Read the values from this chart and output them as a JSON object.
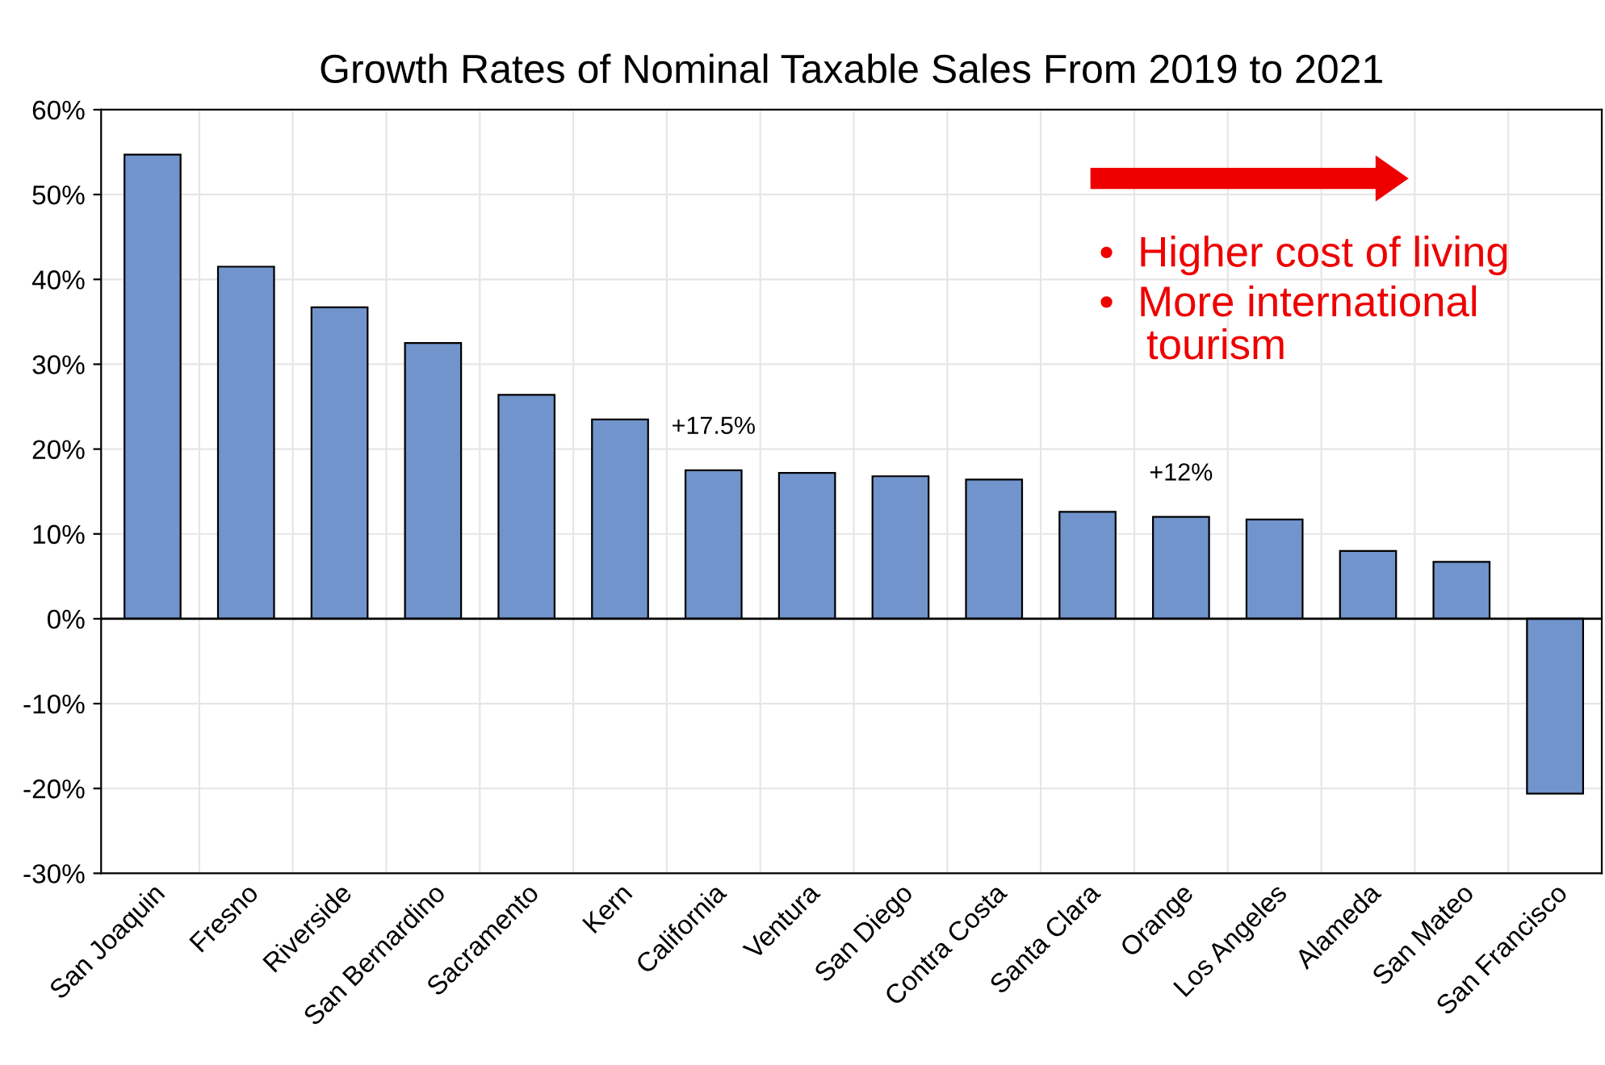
{
  "chart_data": {
    "type": "bar",
    "title": "Growth Rates of Nominal Taxable Sales From 2019 to 2021",
    "categories": [
      "San Joaquin",
      "Fresno",
      "Riverside",
      "San Bernardino",
      "Sacramento",
      "Kern",
      "California",
      "Ventura",
      "San Diego",
      "Contra Costa",
      "Santa Clara",
      "Orange",
      "Los Angeles",
      "Alameda",
      "San Mateo",
      "San Francisco"
    ],
    "values": [
      54.7,
      41.5,
      36.7,
      32.5,
      26.4,
      23.5,
      17.5,
      17.2,
      16.8,
      16.4,
      12.6,
      12,
      11.7,
      8.0,
      6.7,
      -20.6
    ],
    "color": "#7294cc",
    "ylim": [
      -30,
      60
    ],
    "yticks": [
      {
        "value": -30,
        "label": "-30%"
      },
      {
        "value": -20,
        "label": "-20%"
      },
      {
        "value": -10,
        "label": "-10%"
      },
      {
        "value": 0,
        "label": "0%"
      },
      {
        "value": 10,
        "label": "10%"
      },
      {
        "value": 20,
        "label": "20%"
      },
      {
        "value": 30,
        "label": "30%"
      },
      {
        "value": 40,
        "label": "40%"
      },
      {
        "value": 50,
        "label": "50%"
      },
      {
        "value": 60,
        "label": "60%"
      }
    ],
    "grid": true,
    "annotations": [
      {
        "text": "+17.5%",
        "x": "California",
        "y": 17.5
      },
      {
        "text": "+12%",
        "x": "Orange",
        "y": 12
      },
      "•  Higher cost of living",
      "•  More international\n    tourism"
    ]
  }
}
